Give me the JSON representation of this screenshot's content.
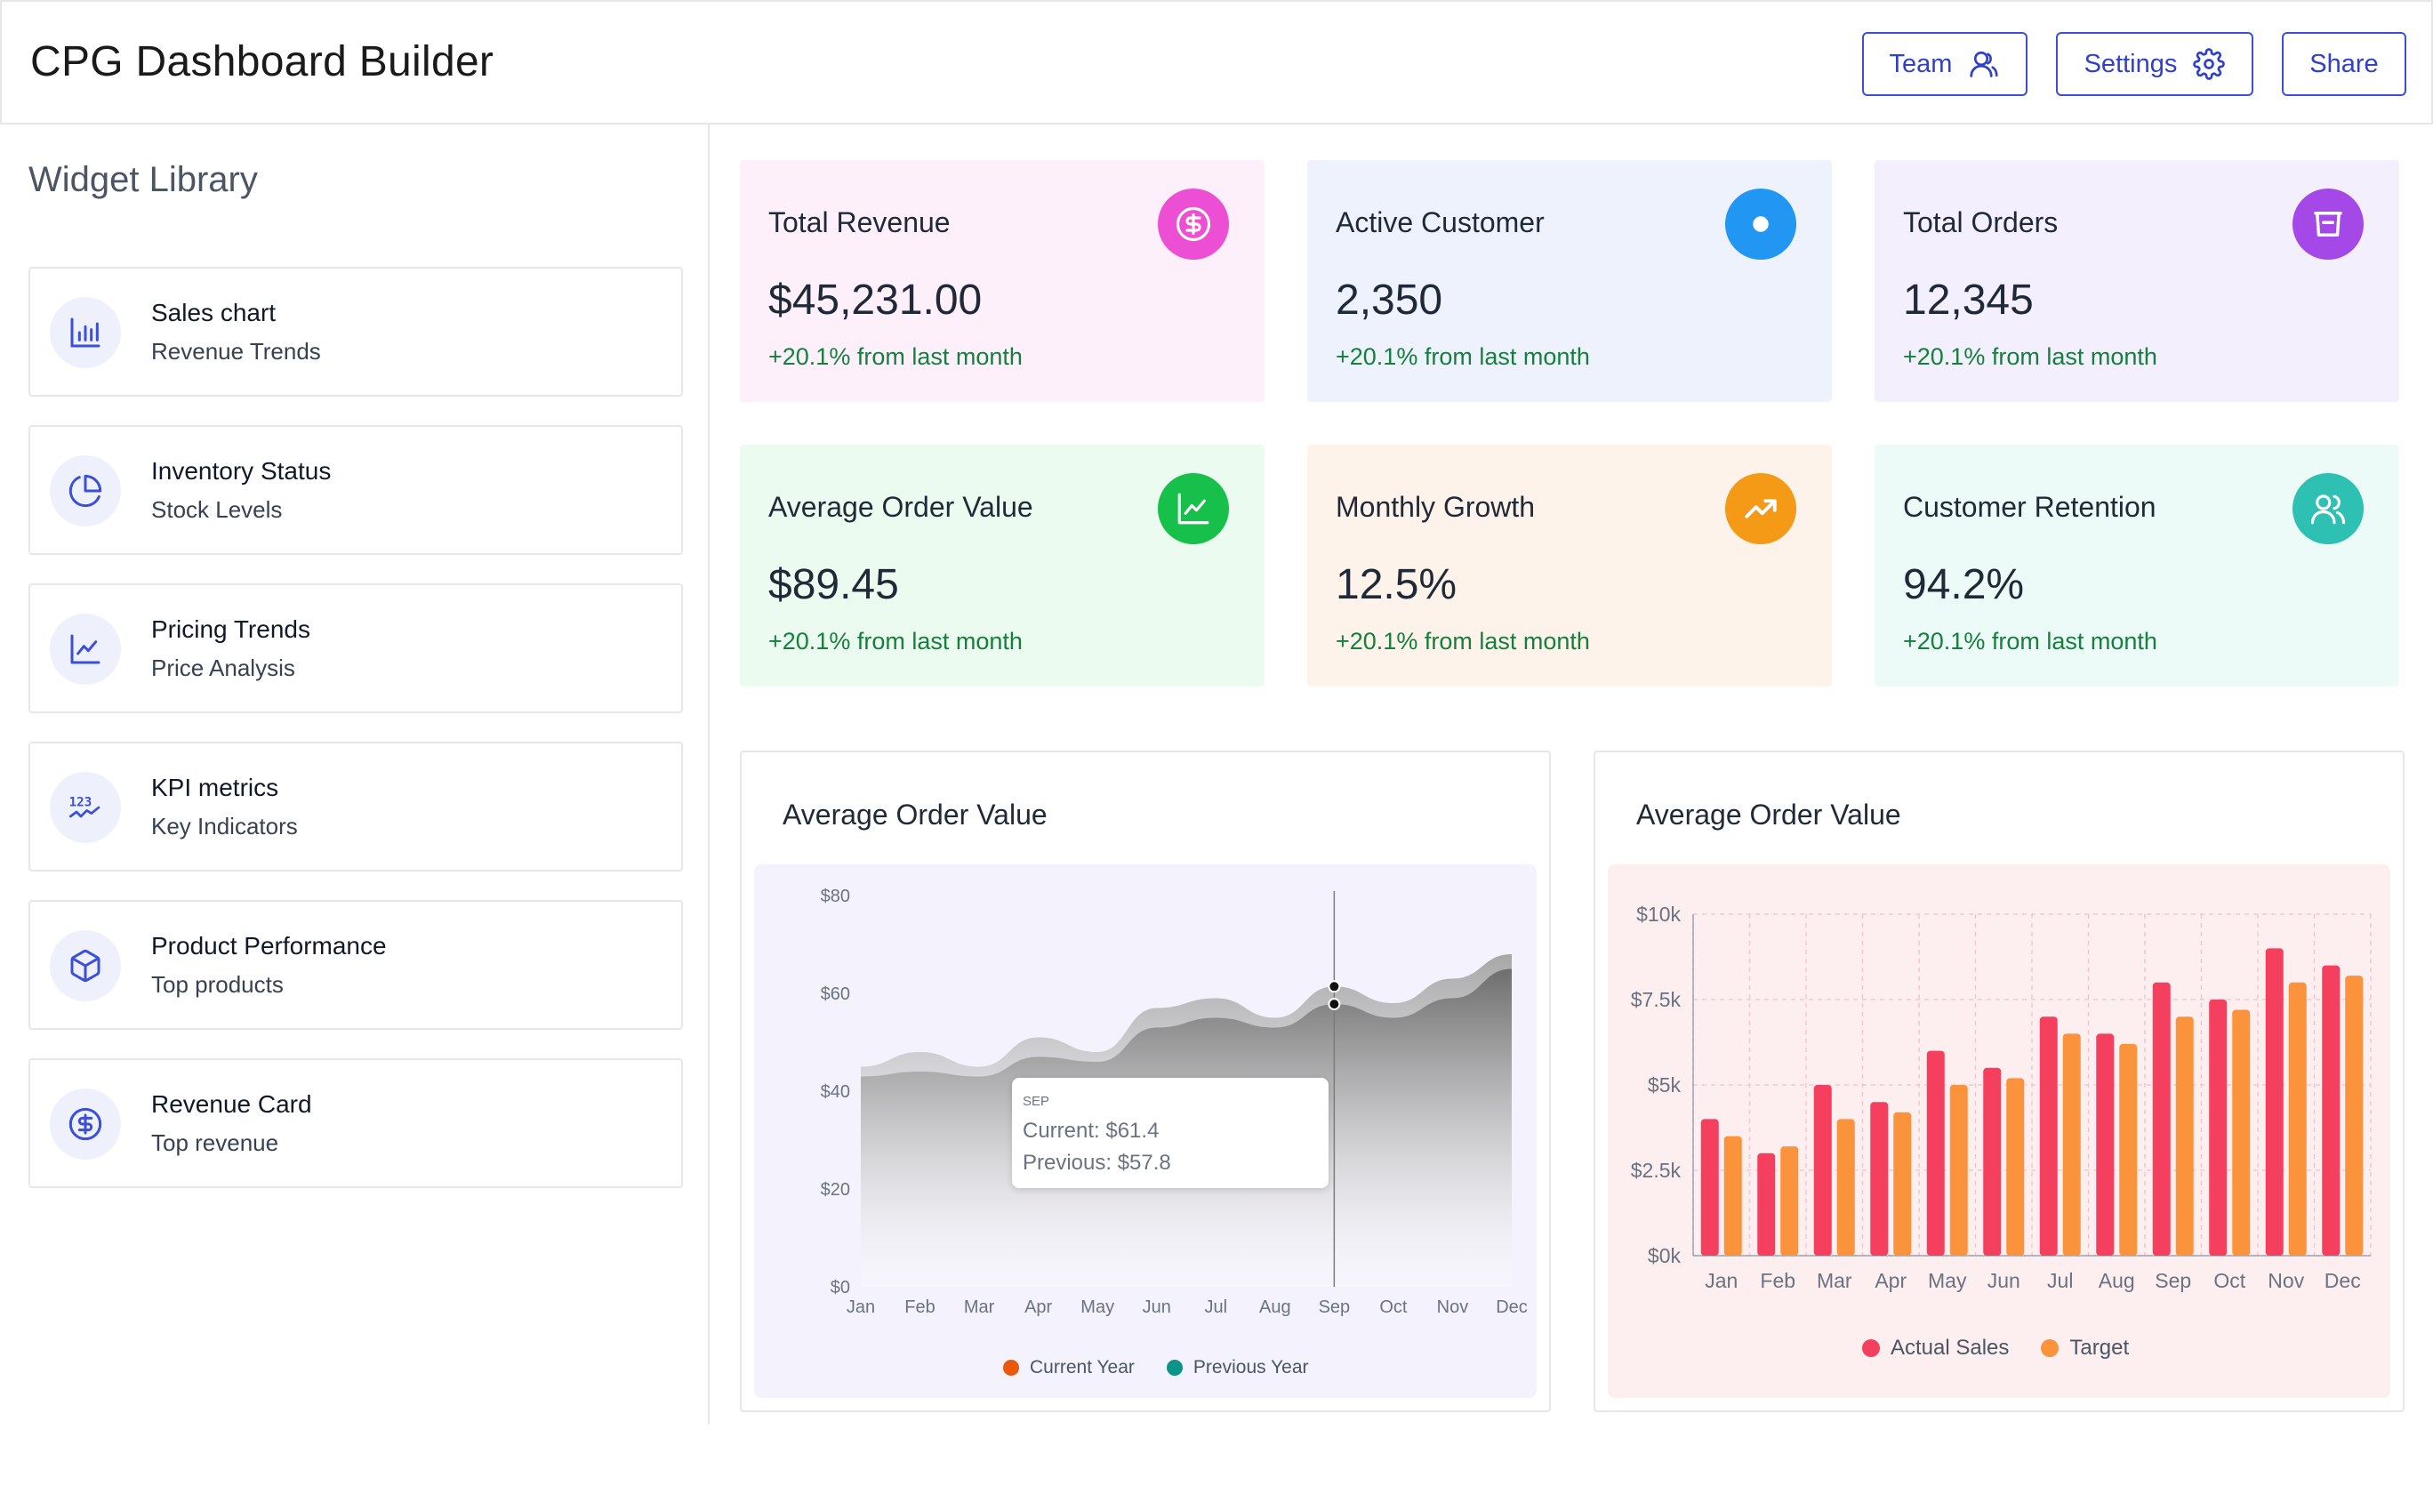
{
  "header": {
    "title": "CPG Dashboard Builder",
    "buttons": [
      {
        "label": "Team",
        "icon": "team-icon"
      },
      {
        "label": "Settings",
        "icon": "gear-icon"
      },
      {
        "label": "Share"
      }
    ]
  },
  "sidebar": {
    "title": "Widget Library",
    "items": [
      {
        "title": "Sales chart",
        "subtitle": "Revenue Trends",
        "icon": "bar-chart-icon"
      },
      {
        "title": "Inventory Status",
        "subtitle": "Stock Levels",
        "icon": "pie-chart-icon"
      },
      {
        "title": "Pricing Trends",
        "subtitle": "Price Analysis",
        "icon": "line-chart-icon"
      },
      {
        "title": "KPI metrics",
        "subtitle": "Key Indicators",
        "icon": "kpi-icon"
      },
      {
        "title": "Product Performance",
        "subtitle": "Top products",
        "icon": "box-icon"
      },
      {
        "title": "Revenue Card",
        "subtitle": "Top revenue",
        "icon": "dollar-icon"
      }
    ]
  },
  "cards": [
    {
      "title": "Total Revenue",
      "value": "$45,231.00",
      "change": "+20.1% from last month",
      "bg": "#fdf0fb",
      "icon_color": "#ec4fd3",
      "icon": "dollar-icon"
    },
    {
      "title": "Active Customer",
      "value": "2,350",
      "change": "+20.1% from last month",
      "bg": "#eef2fd",
      "icon_color": "#2196f3",
      "icon": "dot-icon"
    },
    {
      "title": "Total Orders",
      "value": "12,345",
      "change": "+20.1% from last month",
      "bg": "#f4effd",
      "icon_color": "#a548e8",
      "icon": "basket-icon"
    },
    {
      "title": "Average Order Value",
      "value": "$89.45",
      "change": "+20.1% from last month",
      "bg": "#ecfbef",
      "icon_color": "#16c04a",
      "icon": "line-chart-icon"
    },
    {
      "title": "Monthly Growth",
      "value": "12.5%",
      "change": "+20.1% from last month",
      "bg": "#fdf3ea",
      "icon_color": "#f49a17",
      "icon": "trending-up-icon"
    },
    {
      "title": "Customer Retention",
      "value": "94.2%",
      "change": "+20.1% from last month",
      "bg": "#edfbf8",
      "icon_color": "#2ec0b3",
      "icon": "users-icon"
    }
  ],
  "colors": {
    "accent": "#3b4fd8",
    "positive": "#15803d"
  },
  "tooltip": {
    "month": "SEP",
    "current": "Current: $61.4",
    "previous": "Previous: $57.8"
  },
  "chart_data": [
    {
      "type": "area",
      "title": "Average Order Value",
      "x": [
        "Jan",
        "Feb",
        "Mar",
        "Apr",
        "May",
        "Jun",
        "Jul",
        "Aug",
        "Sep",
        "Oct",
        "Nov",
        "Dec"
      ],
      "y_ticks": [
        "$0",
        "$20",
        "$40",
        "$60",
        "$80"
      ],
      "ylim": [
        0,
        80
      ],
      "series": [
        {
          "name": "Current Year",
          "color": "#ea580c",
          "values": [
            45,
            48,
            45,
            51,
            48,
            57,
            59,
            55,
            61.4,
            58,
            63,
            68
          ]
        },
        {
          "name": "Previous Year",
          "color": "#0d9488",
          "values": [
            43,
            44,
            43,
            47,
            46,
            53,
            55,
            53,
            57.8,
            55,
            59,
            65
          ]
        }
      ],
      "highlight": "Sep",
      "legend": "bottom"
    },
    {
      "type": "bar",
      "title": "Average Order Value",
      "categories": [
        "Jan",
        "Feb",
        "Mar",
        "Apr",
        "May",
        "Jun",
        "Jul",
        "Aug",
        "Sep",
        "Oct",
        "Nov",
        "Dec"
      ],
      "y_ticks": [
        "$0k",
        "$2.5k",
        "$5k",
        "$7.5k",
        "$10k"
      ],
      "ylim": [
        0,
        10000
      ],
      "series": [
        {
          "name": "Actual Sales",
          "color": "#f43f5e",
          "values": [
            4000,
            3000,
            5000,
            4500,
            6000,
            5500,
            7000,
            6500,
            8000,
            7500,
            9000,
            8500
          ]
        },
        {
          "name": "Target",
          "color": "#fb923c",
          "values": [
            3500,
            3200,
            4000,
            4200,
            5000,
            5200,
            6500,
            6200,
            7000,
            7200,
            8000,
            8200
          ]
        }
      ],
      "grid": true,
      "legend": "bottom"
    }
  ]
}
